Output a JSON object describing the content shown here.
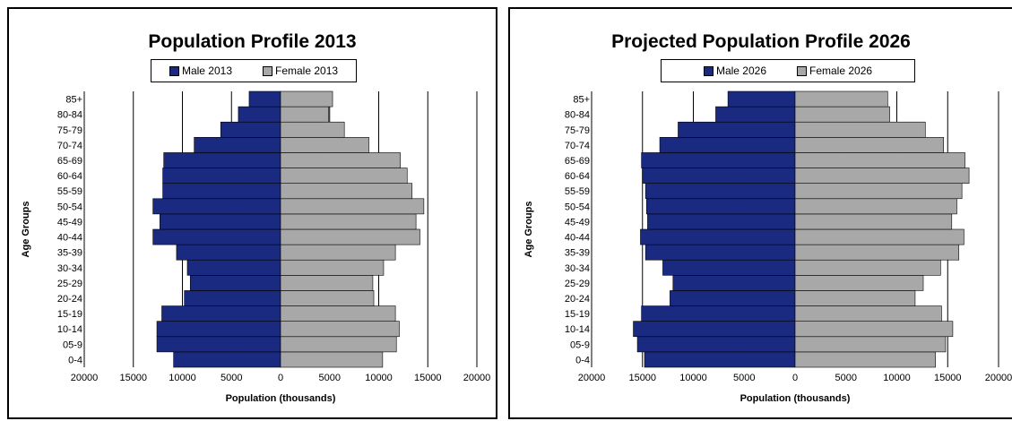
{
  "colors": {
    "male": "#1a2a80",
    "female": "#a8a8a8",
    "grid": "#000000"
  },
  "chart_data": [
    {
      "type": "bar",
      "orientation": "horizontal-pyramid",
      "title": "Population Profile 2013",
      "xlabel": "Population  (thousands)",
      "ylabel": "Age Groups",
      "xlim": [
        -20000,
        20000
      ],
      "xticks": [
        -20000,
        -15000,
        -10000,
        -5000,
        0,
        5000,
        10000,
        15000,
        20000
      ],
      "xtick_labels": [
        "20000",
        "15000",
        "10000",
        "5000",
        "0",
        "5000",
        "10000",
        "15000",
        "20000"
      ],
      "grid": true,
      "legend": "top",
      "categories": [
        "0-4",
        "05-9",
        "10-14",
        "15-19",
        "20-24",
        "25-29",
        "30-34",
        "35-39",
        "40-44",
        "45-49",
        "50-54",
        "55-59",
        "60-64",
        "65-69",
        "70-74",
        "75-79",
        "80-84",
        "85+"
      ],
      "series": [
        {
          "name": "Male 2013",
          "values": [
            10900,
            12600,
            12600,
            12100,
            9800,
            9200,
            9500,
            10600,
            13000,
            12300,
            13000,
            12000,
            12000,
            11900,
            8800,
            6100,
            4300,
            3200
          ]
        },
        {
          "name": "Female 2013",
          "values": [
            10400,
            11800,
            12100,
            11700,
            9500,
            9400,
            10500,
            11700,
            14200,
            13800,
            14600,
            13400,
            12900,
            12200,
            9000,
            6500,
            4900,
            5300
          ]
        }
      ]
    },
    {
      "type": "bar",
      "orientation": "horizontal-pyramid",
      "title": "Projected Population Profile  2026",
      "xlabel": "Population  (thousands)",
      "ylabel": "Age Groups",
      "xlim": [
        -20000,
        20000
      ],
      "xticks": [
        -20000,
        -15000,
        -10000,
        -5000,
        0,
        5000,
        10000,
        15000,
        20000
      ],
      "xtick_labels": [
        "20000",
        "15000",
        "10000",
        "5000",
        "0",
        "5000",
        "10000",
        "15000",
        "20000"
      ],
      "grid": true,
      "legend": "top",
      "categories": [
        "0-4",
        "05-9",
        "10-14",
        "15-19",
        "20-24",
        "25-29",
        "30-34",
        "35-39",
        "40-44",
        "45-49",
        "50-54",
        "55-59",
        "60-64",
        "65-69",
        "70-74",
        "75-79",
        "80-84",
        "85+"
      ],
      "series": [
        {
          "name": "Male 2026",
          "values": [
            14800,
            15500,
            15900,
            15100,
            12300,
            12000,
            13000,
            14700,
            15200,
            14500,
            14600,
            14700,
            15000,
            15100,
            13300,
            11500,
            7800,
            6600
          ]
        },
        {
          "name": "Female 2026",
          "values": [
            13800,
            14800,
            15500,
            14400,
            11800,
            12600,
            14300,
            16100,
            16600,
            15400,
            15900,
            16400,
            17100,
            16700,
            14600,
            12800,
            9300,
            9100
          ]
        }
      ]
    }
  ]
}
